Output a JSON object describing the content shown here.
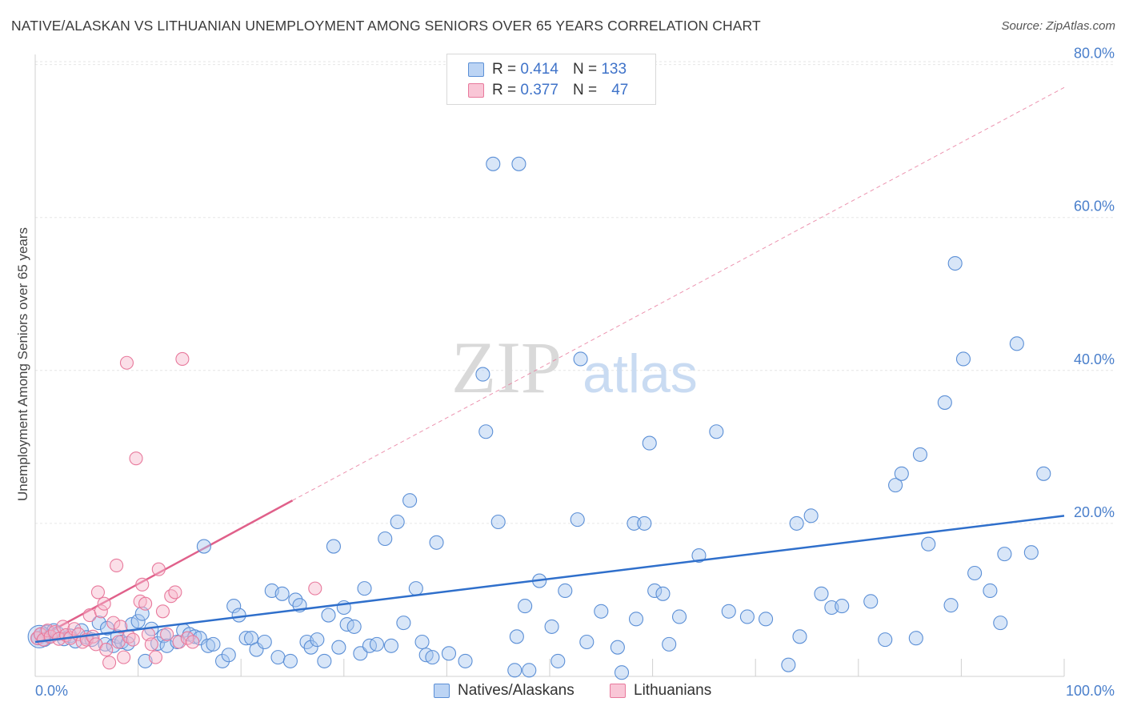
{
  "title": "NATIVE/ALASKAN VS LITHUANIAN UNEMPLOYMENT AMONG SENIORS OVER 65 YEARS CORRELATION CHART",
  "source": "Source: ZipAtlas.com",
  "watermark": {
    "zip": "ZIP",
    "atlas": "atlas"
  },
  "legend": {
    "rows": [
      {
        "r_label": "R =",
        "r_value": "0.414",
        "n_label": "N =",
        "n_value": "133"
      },
      {
        "r_label": "R =",
        "r_value": "0.377",
        "n_label": "N =",
        "n_value": "47"
      }
    ]
  },
  "colors": {
    "blue_fill": "#a8c8f0",
    "blue_stroke": "#5b8fd6",
    "blue_line": "#2f6fcb",
    "pink_fill": "#f7b8cc",
    "pink_stroke": "#e8799c",
    "pink_line": "#e0608a",
    "tick_text": "#4a7fcb",
    "grid": "#e6e6e6"
  },
  "chart_data": {
    "type": "scatter",
    "ylabel": "Unemployment Among Seniors over 65 years",
    "xlim": [
      0,
      100
    ],
    "ylim": [
      0,
      85
    ],
    "x_ticks": [
      "0.0%",
      "100.0%"
    ],
    "y_ticks": [
      {
        "value": 20,
        "label": "20.0%"
      },
      {
        "value": 40,
        "label": "40.0%"
      },
      {
        "value": 60,
        "label": "60.0%"
      },
      {
        "value": 80,
        "label": "80.0%"
      }
    ],
    "grid": true,
    "legend_position": "bottom",
    "series": [
      {
        "name": "Natives/Alaskans",
        "trend": {
          "x0": 0,
          "y0": 4.5,
          "x1": 100,
          "y1": 21.0
        },
        "points": [
          [
            0.3,
            5.0
          ],
          [
            0.6,
            5.5
          ],
          [
            0.9,
            4.8
          ],
          [
            1.1,
            5.8
          ],
          [
            1.4,
            5.2
          ],
          [
            1.8,
            6.0
          ],
          [
            2.2,
            5.6
          ],
          [
            2.8,
            4.9
          ],
          [
            3.4,
            5.3
          ],
          [
            3.9,
            4.6
          ],
          [
            4.5,
            6.0
          ],
          [
            5.0,
            5.1
          ],
          [
            5.5,
            4.8
          ],
          [
            6.2,
            7.0
          ],
          [
            6.8,
            4.2
          ],
          [
            7.0,
            6.3
          ],
          [
            7.6,
            4.0
          ],
          [
            8.0,
            5.2
          ],
          [
            8.4,
            4.5
          ],
          [
            9.0,
            4.3
          ],
          [
            9.4,
            6.8
          ],
          [
            10.0,
            7.2
          ],
          [
            10.4,
            8.2
          ],
          [
            10.7,
            2.0
          ],
          [
            11.3,
            6.2
          ],
          [
            11.9,
            4.3
          ],
          [
            12.5,
            5.3
          ],
          [
            12.8,
            4.0
          ],
          [
            13.8,
            4.5
          ],
          [
            14.4,
            6.0
          ],
          [
            15.0,
            5.5
          ],
          [
            15.5,
            5.2
          ],
          [
            16.0,
            5.0
          ],
          [
            16.4,
            17.0
          ],
          [
            16.8,
            4.0
          ],
          [
            17.3,
            4.2
          ],
          [
            18.2,
            2.0
          ],
          [
            18.8,
            2.8
          ],
          [
            19.3,
            9.2
          ],
          [
            19.8,
            8.0
          ],
          [
            20.5,
            5.0
          ],
          [
            21.0,
            5.0
          ],
          [
            21.5,
            3.5
          ],
          [
            22.3,
            4.5
          ],
          [
            23.0,
            11.2
          ],
          [
            23.6,
            2.5
          ],
          [
            24.0,
            10.8
          ],
          [
            24.8,
            2.0
          ],
          [
            25.3,
            10.0
          ],
          [
            25.7,
            9.3
          ],
          [
            26.4,
            4.5
          ],
          [
            26.8,
            3.8
          ],
          [
            27.4,
            4.8
          ],
          [
            28.1,
            2.0
          ],
          [
            28.5,
            8.0
          ],
          [
            29.0,
            17.0
          ],
          [
            29.5,
            3.8
          ],
          [
            30.0,
            9.0
          ],
          [
            30.3,
            6.8
          ],
          [
            31.0,
            6.5
          ],
          [
            31.6,
            3.0
          ],
          [
            32.0,
            11.5
          ],
          [
            32.5,
            4.0
          ],
          [
            33.2,
            4.2
          ],
          [
            34.0,
            18.0
          ],
          [
            34.6,
            4.0
          ],
          [
            35.2,
            20.2
          ],
          [
            35.8,
            7.0
          ],
          [
            36.4,
            23.0
          ],
          [
            37.0,
            11.5
          ],
          [
            37.6,
            4.5
          ],
          [
            38.0,
            2.8
          ],
          [
            38.6,
            2.5
          ],
          [
            39.0,
            17.5
          ],
          [
            40.2,
            3.0
          ],
          [
            41.8,
            2.0
          ],
          [
            43.5,
            39.5
          ],
          [
            43.8,
            32.0
          ],
          [
            44.5,
            67.0
          ],
          [
            45.0,
            20.2
          ],
          [
            46.6,
            0.8
          ],
          [
            46.8,
            5.2
          ],
          [
            47.0,
            67.0
          ],
          [
            47.6,
            9.2
          ],
          [
            48.0,
            0.8
          ],
          [
            49.0,
            12.5
          ],
          [
            50.2,
            6.5
          ],
          [
            50.8,
            2.0
          ],
          [
            51.5,
            11.2
          ],
          [
            52.7,
            20.5
          ],
          [
            53.0,
            41.5
          ],
          [
            53.6,
            4.5
          ],
          [
            55.0,
            8.5
          ],
          [
            56.6,
            3.8
          ],
          [
            57.0,
            0.5
          ],
          [
            58.2,
            20.0
          ],
          [
            58.4,
            7.5
          ],
          [
            59.2,
            20.0
          ],
          [
            59.7,
            30.5
          ],
          [
            60.2,
            11.2
          ],
          [
            61.0,
            10.8
          ],
          [
            61.6,
            4.2
          ],
          [
            62.6,
            7.8
          ],
          [
            64.5,
            15.8
          ],
          [
            66.2,
            32.0
          ],
          [
            67.4,
            8.5
          ],
          [
            69.2,
            7.8
          ],
          [
            71.0,
            7.5
          ],
          [
            73.2,
            1.5
          ],
          [
            74.0,
            20.0
          ],
          [
            74.3,
            5.2
          ],
          [
            75.4,
            21.0
          ],
          [
            76.4,
            10.8
          ],
          [
            77.4,
            9.0
          ],
          [
            78.4,
            9.2
          ],
          [
            81.2,
            9.8
          ],
          [
            82.6,
            4.8
          ],
          [
            83.6,
            25.0
          ],
          [
            84.2,
            26.5
          ],
          [
            85.6,
            5.0
          ],
          [
            86.0,
            29.0
          ],
          [
            86.8,
            17.3
          ],
          [
            88.4,
            35.8
          ],
          [
            89.0,
            9.3
          ],
          [
            89.4,
            54.0
          ],
          [
            90.2,
            41.5
          ],
          [
            91.3,
            13.5
          ],
          [
            92.8,
            11.2
          ],
          [
            93.8,
            7.0
          ],
          [
            94.2,
            16.0
          ],
          [
            95.4,
            43.5
          ],
          [
            96.8,
            16.2
          ],
          [
            98.0,
            26.5
          ]
        ]
      },
      {
        "name": "Lithuanians",
        "trend": {
          "x0": 0,
          "y0": 4.8,
          "x1": 25,
          "y1": 23.0
        },
        "trend_extension": {
          "x0": 25,
          "y0": 23.0,
          "x1": 100,
          "y1": 77.0
        },
        "points": [
          [
            0.2,
            5.0
          ],
          [
            0.5,
            5.5
          ],
          [
            0.8,
            4.8
          ],
          [
            1.2,
            6.0
          ],
          [
            1.5,
            5.2
          ],
          [
            1.9,
            5.8
          ],
          [
            2.3,
            4.9
          ],
          [
            2.7,
            6.5
          ],
          [
            3.0,
            5.4
          ],
          [
            3.4,
            5.0
          ],
          [
            3.8,
            6.2
          ],
          [
            4.2,
            5.5
          ],
          [
            4.6,
            4.5
          ],
          [
            5.0,
            4.8
          ],
          [
            5.3,
            8.0
          ],
          [
            5.6,
            5.2
          ],
          [
            5.9,
            4.2
          ],
          [
            6.1,
            11.0
          ],
          [
            6.4,
            8.5
          ],
          [
            6.7,
            9.5
          ],
          [
            6.9,
            3.5
          ],
          [
            7.2,
            1.8
          ],
          [
            7.6,
            7.0
          ],
          [
            7.9,
            14.5
          ],
          [
            8.1,
            4.5
          ],
          [
            8.3,
            6.5
          ],
          [
            8.6,
            2.5
          ],
          [
            8.9,
            41.0
          ],
          [
            9.1,
            5.2
          ],
          [
            9.5,
            4.8
          ],
          [
            9.8,
            28.5
          ],
          [
            10.2,
            9.8
          ],
          [
            10.4,
            12.0
          ],
          [
            10.7,
            9.5
          ],
          [
            11.0,
            5.5
          ],
          [
            11.3,
            4.2
          ],
          [
            11.7,
            2.5
          ],
          [
            12.0,
            14.0
          ],
          [
            12.4,
            8.5
          ],
          [
            12.8,
            5.5
          ],
          [
            13.2,
            10.5
          ],
          [
            13.6,
            11.0
          ],
          [
            14.0,
            4.5
          ],
          [
            14.3,
            41.5
          ],
          [
            14.8,
            5.0
          ],
          [
            15.3,
            4.5
          ],
          [
            27.2,
            11.5
          ]
        ]
      }
    ]
  }
}
